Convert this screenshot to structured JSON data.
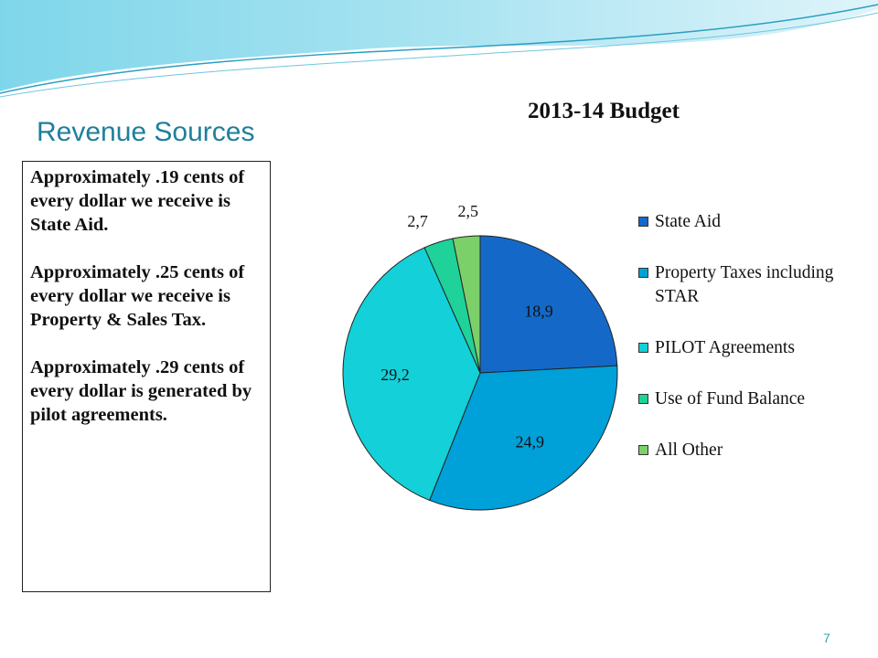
{
  "slide": {
    "title": "Revenue Sources",
    "page_number": "7",
    "bullets": [
      "Approximately .19 cents of every dollar we receive is State Aid.",
      "Approximately .25 cents of every dollar we receive is Property & Sales Tax.",
      "Approximately .29 cents of every dollar is generated by pilot agreements."
    ]
  },
  "chart_data": {
    "type": "pie",
    "title": "2013-14 Budget",
    "legend_position": "right",
    "slices": [
      {
        "name": "State Aid",
        "value": 18.9,
        "label": "18,9",
        "color": "#1469c8"
      },
      {
        "name": "Property  Taxes including STAR",
        "value": 24.9,
        "label": "24,9",
        "color": "#00a0d8"
      },
      {
        "name": "PILOT Agreements",
        "value": 29.2,
        "label": "29,2",
        "color": "#14d0d8"
      },
      {
        "name": "Use of Fund Balance",
        "value": 2.7,
        "label": "2,7",
        "color": "#1ed29a"
      },
      {
        "name": "All Other",
        "value": 2.5,
        "label": "2,5",
        "color": "#7cd06a"
      }
    ]
  }
}
